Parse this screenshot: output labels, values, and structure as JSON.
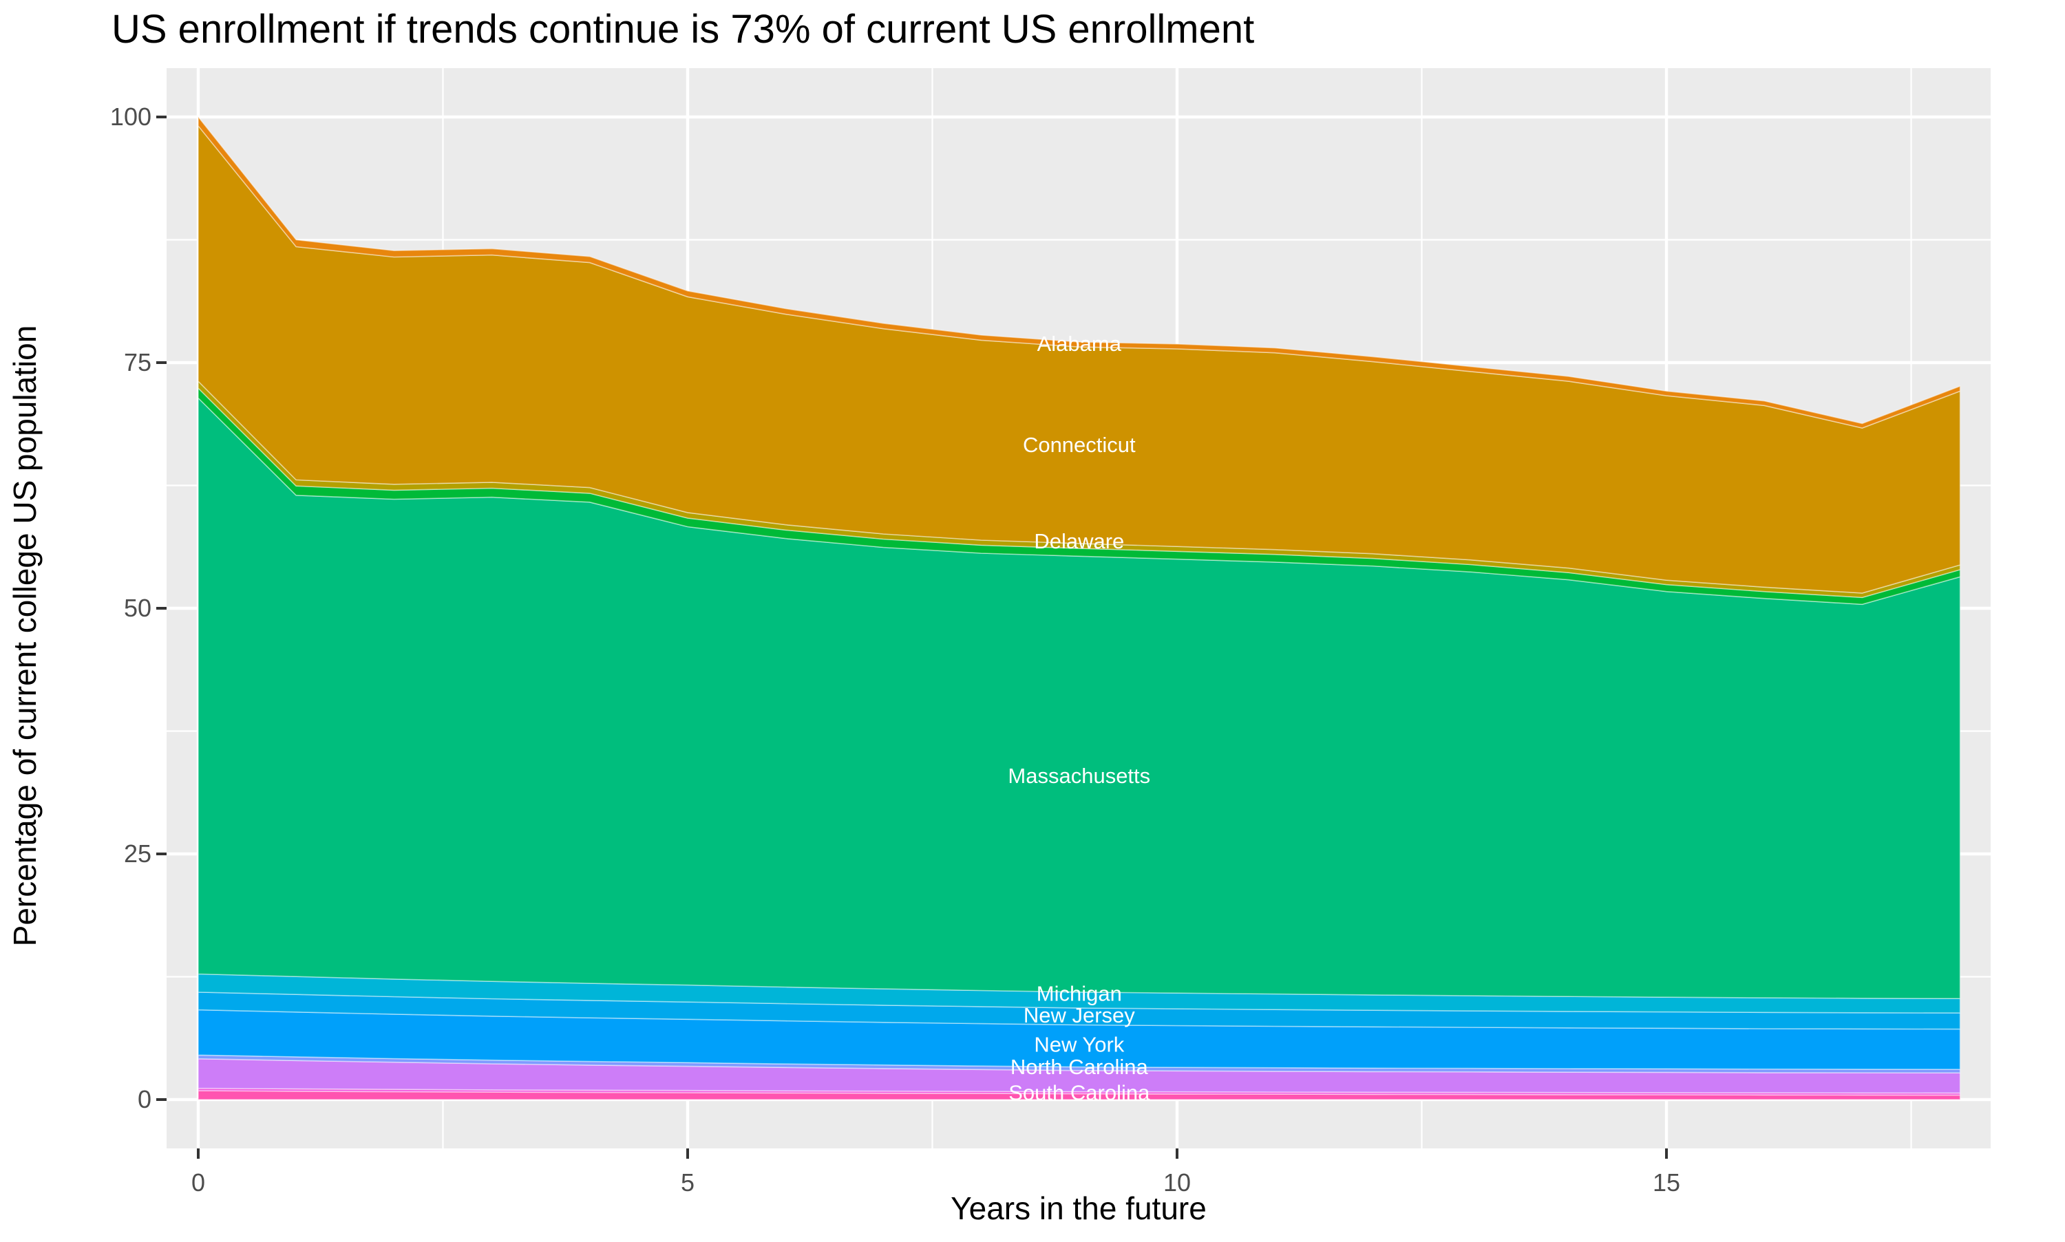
{
  "title": "US enrollment if trends continue is 73% of current US enrollment",
  "chart_data": {
    "type": "area",
    "stacked": true,
    "title": "US enrollment if trends continue is 73% of current US enrollment",
    "xlabel": "Years in the future",
    "ylabel": "Percentage of current college US population",
    "x": [
      0,
      1,
      2,
      3,
      4,
      5,
      6,
      7,
      8,
      9,
      10,
      11,
      12,
      13,
      14,
      15,
      16,
      17,
      18
    ],
    "x_ticks": [
      0,
      5,
      10,
      15
    ],
    "y_ticks": [
      0,
      25,
      50,
      75,
      100
    ],
    "x_minor_ticks": [
      2.5,
      7.5,
      12.5,
      17.5
    ],
    "y_minor_ticks": [
      12.5,
      37.5,
      62.5,
      87.5
    ],
    "xlim": [
      -0.33,
      18.33
    ],
    "ylim": [
      -5,
      105
    ],
    "grid": "on",
    "legend_position": "none",
    "total_at_year_0": 100,
    "total_at_year_18": 72.6,
    "series": [
      {
        "name": "south-carolina",
        "label": "South Carolina",
        "color": "#FF54B0",
        "label_x": 9,
        "label_y": 0.65,
        "values": [
          0.9,
          0.85,
          0.8,
          0.76,
          0.73,
          0.7,
          0.67,
          0.64,
          0.62,
          0.59,
          0.57,
          0.55,
          0.53,
          0.52,
          0.5,
          0.49,
          0.47,
          0.46,
          0.45
        ]
      },
      {
        "name": "sliver-orchid",
        "label": "",
        "color": "#F35FE0",
        "label_x": null,
        "label_y": null,
        "values": [
          0.25,
          0.24,
          0.24,
          0.23,
          0.23,
          0.23,
          0.22,
          0.22,
          0.22,
          0.22,
          0.22,
          0.22,
          0.22,
          0.22,
          0.22,
          0.22,
          0.22,
          0.22,
          0.22
        ]
      },
      {
        "name": "north-carolina",
        "label": "North Carolina",
        "color": "#CD7DF8",
        "label_x": 9,
        "label_y": 3.3,
        "values": [
          3.0,
          2.88,
          2.76,
          2.65,
          2.55,
          2.46,
          2.38,
          2.3,
          2.22,
          2.15,
          2.13,
          2.11,
          2.09,
          2.08,
          2.07,
          2.06,
          2.05,
          2.05,
          2.05
        ]
      },
      {
        "name": "sliver-periwinkle",
        "label": "",
        "color": "#7F9BFF",
        "label_x": null,
        "label_y": null,
        "values": [
          0.38,
          0.38,
          0.37,
          0.37,
          0.37,
          0.37,
          0.36,
          0.36,
          0.36,
          0.36,
          0.36,
          0.36,
          0.36,
          0.36,
          0.36,
          0.36,
          0.36,
          0.36,
          0.36
        ]
      },
      {
        "name": "new-york",
        "label": "New York",
        "color": "#00A0FA",
        "label_x": 9,
        "label_y": 5.55,
        "values": [
          4.6,
          4.56,
          4.52,
          4.48,
          4.44,
          4.41,
          4.38,
          4.34,
          4.31,
          4.28,
          4.25,
          4.22,
          4.2,
          4.17,
          4.15,
          4.13,
          4.11,
          4.1,
          4.09
        ]
      },
      {
        "name": "new-jersey",
        "label": "New Jersey",
        "color": "#00A8EC",
        "label_x": 9,
        "label_y": 8.55,
        "values": [
          1.8,
          1.79,
          1.78,
          1.77,
          1.77,
          1.76,
          1.75,
          1.74,
          1.73,
          1.72,
          1.71,
          1.7,
          1.69,
          1.68,
          1.67,
          1.66,
          1.66,
          1.65,
          1.65
        ]
      },
      {
        "name": "michigan",
        "label": "Michigan",
        "color": "#00B5D8",
        "label_x": 9,
        "label_y": 10.75,
        "values": [
          1.85,
          1.82,
          1.79,
          1.77,
          1.74,
          1.72,
          1.69,
          1.67,
          1.64,
          1.62,
          1.6,
          1.58,
          1.56,
          1.54,
          1.52,
          1.5,
          1.49,
          1.47,
          1.46
        ]
      },
      {
        "name": "massachusetts",
        "label": "Massachusetts",
        "color": "#00BE7D",
        "label_x": 9,
        "label_y": 32.9,
        "values": [
          58.62,
          48.98,
          48.84,
          49.27,
          48.97,
          46.65,
          45.65,
          44.93,
          44.5,
          44.36,
          44.16,
          43.96,
          43.65,
          43.13,
          42.41,
          41.28,
          40.64,
          40.09,
          42.92
        ]
      },
      {
        "name": "sliver-green",
        "label": "",
        "color": "#00BA38",
        "label_x": null,
        "label_y": null,
        "values": [
          1.0,
          0.95,
          0.92,
          0.92,
          0.9,
          0.88,
          0.86,
          0.84,
          0.82,
          0.8,
          0.79,
          0.78,
          0.77,
          0.75,
          0.73,
          0.71,
          0.7,
          0.7,
          0.73
        ]
      },
      {
        "name": "delaware",
        "label": "Delaware",
        "color": "#B4A000",
        "label_x": 9,
        "label_y": 56.8,
        "values": [
          0.7,
          0.62,
          0.6,
          0.6,
          0.58,
          0.56,
          0.54,
          0.52,
          0.51,
          0.5,
          0.5,
          0.49,
          0.48,
          0.47,
          0.46,
          0.45,
          0.45,
          0.45,
          0.48
        ]
      },
      {
        "name": "connecticut",
        "label": "Connecticut",
        "color": "#CE9200",
        "label_x": 9,
        "label_y": 66.6,
        "values": [
          26.0,
          23.73,
          23.13,
          23.13,
          22.9,
          21.96,
          21.43,
          20.89,
          20.35,
          20.0,
          20.11,
          20.03,
          19.55,
          19.18,
          19.01,
          18.77,
          18.49,
          16.8,
          17.69
        ]
      },
      {
        "name": "alabama",
        "label": "Alabama",
        "color": "#E8860D",
        "label_x": 9,
        "label_y": 76.9,
        "values": [
          0.9,
          0.7,
          0.65,
          0.65,
          0.62,
          0.6,
          0.57,
          0.55,
          0.52,
          0.5,
          0.5,
          0.5,
          0.5,
          0.5,
          0.5,
          0.47,
          0.46,
          0.45,
          0.5
        ]
      }
    ]
  },
  "axis_tick_labels": {
    "y": [
      "0",
      "25",
      "50",
      "75",
      "100"
    ],
    "x": [
      "0",
      "5",
      "10",
      "15"
    ]
  },
  "colors": {
    "panel_background": "#EBEBEB",
    "grid_major": "#FFFFFF",
    "grid_minor": "#FFFFFF",
    "tick_text": "#4D4D4D",
    "tick_mark": "#333333",
    "title_text": "#000000",
    "axis_title_text": "#000000",
    "area_label_text": "#FFFFFF"
  }
}
